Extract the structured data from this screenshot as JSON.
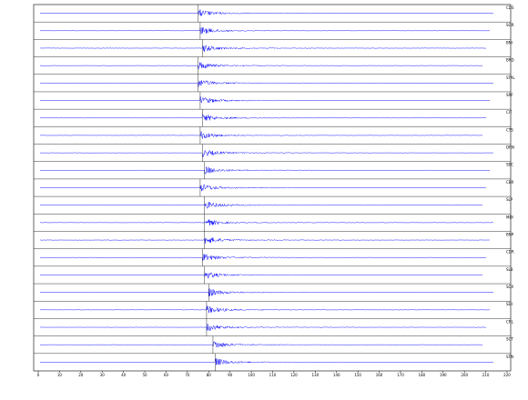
{
  "chart_data": {
    "type": "seismogram",
    "xlim": [
      0,
      220
    ],
    "xticks": [
      0,
      10,
      20,
      30,
      40,
      50,
      60,
      70,
      80,
      90,
      100,
      110,
      120,
      130,
      140,
      150,
      160,
      170,
      180,
      190,
      200,
      210,
      220
    ],
    "color": "#1a1aff",
    "traces": [
      {
        "name": "CDS",
        "onset": 75
      },
      {
        "name": "SOR",
        "onset": 76
      },
      {
        "name": "BNI",
        "onset": 77
      },
      {
        "name": "BRD",
        "onset": 75
      },
      {
        "name": "STAL",
        "onset": 75
      },
      {
        "name": "SRF",
        "onset": 76
      },
      {
        "name": "CIT",
        "onset": 77
      },
      {
        "name": "CTS",
        "onset": 76
      },
      {
        "name": "DRN",
        "onset": 77
      },
      {
        "name": "SEC",
        "onset": 78
      },
      {
        "name": "CBR",
        "onset": 76
      },
      {
        "name": "SLP",
        "onset": 78
      },
      {
        "name": "MDI",
        "onset": 78
      },
      {
        "name": "BNP",
        "onset": 78
      },
      {
        "name": "CDR",
        "onset": 77
      },
      {
        "name": "SLB",
        "onset": 78
      },
      {
        "name": "SCX",
        "onset": 80
      },
      {
        "name": "SDI",
        "onset": 79
      },
      {
        "name": "CRL",
        "onset": 79
      },
      {
        "name": "SCT",
        "onset": 82
      },
      {
        "name": "STN",
        "onset": 83
      }
    ]
  }
}
